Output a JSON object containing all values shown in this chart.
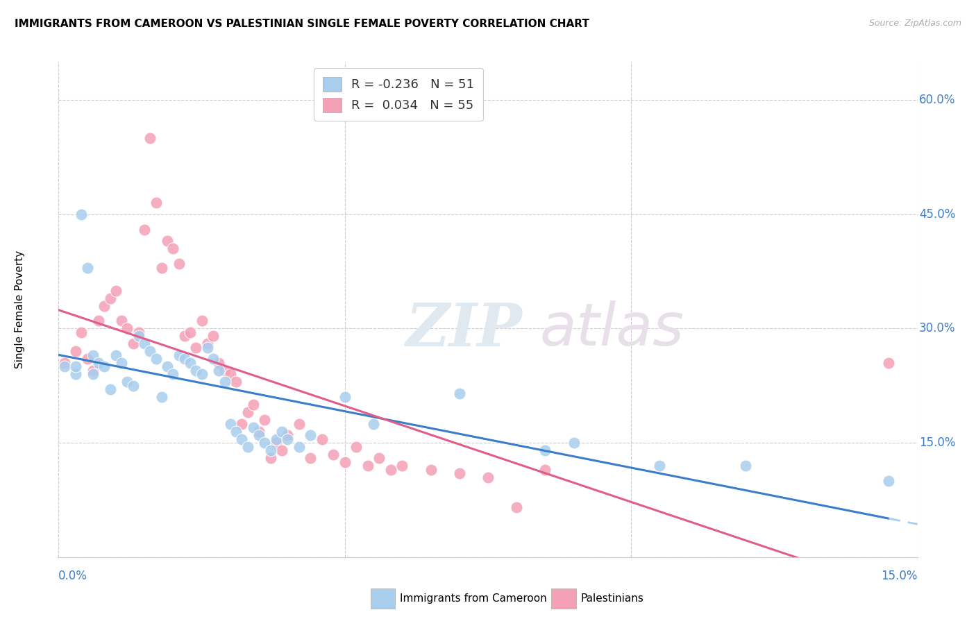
{
  "title": "IMMIGRANTS FROM CAMEROON VS PALESTINIAN SINGLE FEMALE POVERTY CORRELATION CHART",
  "source": "Source: ZipAtlas.com",
  "ylabel": "Single Female Poverty",
  "xlim": [
    0.0,
    0.15
  ],
  "ylim": [
    0.0,
    0.65
  ],
  "blue_R": -0.236,
  "blue_N": 51,
  "pink_R": 0.034,
  "pink_N": 55,
  "blue_color": "#A8CDED",
  "pink_color": "#F4A0B5",
  "line_blue_color": "#3A7DC9",
  "line_pink_color": "#E05C8A",
  "line_blue_dash_color": "#A8CDED",
  "watermark_zip": "ZIP",
  "watermark_atlas": "atlas",
  "blue_x": [
    0.001,
    0.003,
    0.003,
    0.004,
    0.005,
    0.006,
    0.006,
    0.007,
    0.008,
    0.009,
    0.01,
    0.011,
    0.012,
    0.013,
    0.014,
    0.015,
    0.016,
    0.017,
    0.018,
    0.019,
    0.02,
    0.021,
    0.022,
    0.023,
    0.024,
    0.025,
    0.026,
    0.027,
    0.028,
    0.029,
    0.03,
    0.031,
    0.032,
    0.033,
    0.034,
    0.035,
    0.036,
    0.037,
    0.038,
    0.039,
    0.04,
    0.042,
    0.044,
    0.05,
    0.055,
    0.07,
    0.085,
    0.09,
    0.105,
    0.12,
    0.145
  ],
  "blue_y": [
    0.25,
    0.24,
    0.25,
    0.45,
    0.38,
    0.265,
    0.24,
    0.255,
    0.25,
    0.22,
    0.265,
    0.255,
    0.23,
    0.225,
    0.29,
    0.28,
    0.27,
    0.26,
    0.21,
    0.25,
    0.24,
    0.265,
    0.26,
    0.255,
    0.245,
    0.24,
    0.275,
    0.26,
    0.245,
    0.23,
    0.175,
    0.165,
    0.155,
    0.145,
    0.17,
    0.16,
    0.15,
    0.14,
    0.155,
    0.165,
    0.155,
    0.145,
    0.16,
    0.21,
    0.175,
    0.215,
    0.14,
    0.15,
    0.12,
    0.12,
    0.1
  ],
  "pink_x": [
    0.001,
    0.003,
    0.004,
    0.005,
    0.006,
    0.007,
    0.008,
    0.009,
    0.01,
    0.011,
    0.012,
    0.013,
    0.014,
    0.015,
    0.016,
    0.017,
    0.018,
    0.019,
    0.02,
    0.021,
    0.022,
    0.023,
    0.024,
    0.025,
    0.026,
    0.027,
    0.028,
    0.029,
    0.03,
    0.031,
    0.032,
    0.033,
    0.034,
    0.035,
    0.036,
    0.037,
    0.038,
    0.039,
    0.04,
    0.042,
    0.044,
    0.046,
    0.048,
    0.05,
    0.052,
    0.054,
    0.056,
    0.058,
    0.06,
    0.065,
    0.07,
    0.075,
    0.08,
    0.085,
    0.145
  ],
  "pink_y": [
    0.255,
    0.27,
    0.295,
    0.26,
    0.245,
    0.31,
    0.33,
    0.34,
    0.35,
    0.31,
    0.3,
    0.28,
    0.295,
    0.43,
    0.55,
    0.465,
    0.38,
    0.415,
    0.405,
    0.385,
    0.29,
    0.295,
    0.275,
    0.31,
    0.28,
    0.29,
    0.255,
    0.245,
    0.24,
    0.23,
    0.175,
    0.19,
    0.2,
    0.165,
    0.18,
    0.13,
    0.15,
    0.14,
    0.16,
    0.175,
    0.13,
    0.155,
    0.135,
    0.125,
    0.145,
    0.12,
    0.13,
    0.115,
    0.12,
    0.115,
    0.11,
    0.105,
    0.065,
    0.115,
    0.255
  ]
}
